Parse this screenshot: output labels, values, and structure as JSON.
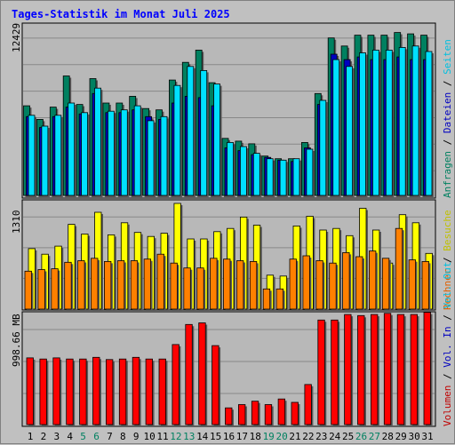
{
  "chart_data": {
    "type": "bar",
    "title": "Tages-Statistik im Monat Juli 2025",
    "categories": [
      "1",
      "2",
      "3",
      "4",
      "5",
      "6",
      "7",
      "8",
      "9",
      "10",
      "11",
      "12",
      "13",
      "14",
      "15",
      "16",
      "17",
      "18",
      "19",
      "20",
      "21",
      "22",
      "23",
      "24",
      "25",
      "26",
      "27",
      "28",
      "29",
      "30",
      "31"
    ],
    "weekend_categories": [
      "5",
      "6",
      "12",
      "13",
      "19",
      "20",
      "26",
      "27"
    ],
    "colors": {
      "weekday_label": "#000000",
      "weekend_label": "#008060",
      "anfragen": "#008060",
      "dateien": "#0000c0",
      "seiten": "#00e0ff",
      "besuche": "#ffff00",
      "rechner": "#ff8000",
      "volumen": "#ff0000"
    },
    "panels": [
      {
        "name": "hits",
        "ymax_label": "12429",
        "ymax": 12429,
        "series": [
          {
            "name": "Anfragen",
            "values": [
              6600,
              5600,
              6500,
              8800,
              6700,
              8600,
              6800,
              6800,
              7300,
              6400,
              6300,
              8500,
              9800,
              10700,
              8300,
              4200,
              4000,
              3800,
              2900,
              2700,
              2700,
              3900,
              7500,
              11600,
              11000,
              11800,
              11800,
              11800,
              12000,
              11900,
              11800
            ]
          },
          {
            "name": "Dateien",
            "values": [
              5800,
              5000,
              5800,
              6500,
              6000,
              7500,
              6100,
              6100,
              6300,
              5800,
              5600,
              6800,
              7300,
              7200,
              6600,
              3500,
              3300,
              3000,
              2800,
              2600,
              2500,
              3500,
              6700,
              10400,
              10000,
              10200,
              10000,
              10000,
              10200,
              10000,
              10000
            ]
          },
          {
            "name": "Seiten",
            "values": [
              5900,
              5100,
              5900,
              6800,
              6100,
              7900,
              6200,
              6300,
              6600,
              5500,
              5800,
              8100,
              9500,
              9200,
              8200,
              3900,
              3600,
              3100,
              2700,
              2600,
              2700,
              3400,
              7000,
              10000,
              9500,
              10500,
              10700,
              10700,
              10900,
              11000,
              10600
            ]
          }
        ]
      },
      {
        "name": "visits",
        "ymax_label": "1310",
        "ymax": 1310,
        "series": [
          {
            "name": "Besuche",
            "values": [
              750,
              680,
              780,
              1050,
              930,
              1200,
              920,
              1070,
              950,
              900,
              940,
              1310,
              870,
              870,
              960,
              1000,
              1140,
              1040,
              420,
              410,
              1030,
              1150,
              980,
              1000,
              910,
              1250,
              980,
              570,
              1170,
              1070,
              690
            ]
          },
          {
            "name": "Rechner",
            "values": [
              470,
              490,
              500,
              580,
              600,
              630,
              590,
              600,
              600,
              620,
              680,
              570,
              510,
              510,
              630,
              620,
              600,
              590,
              250,
              250,
              620,
              660,
              600,
              570,
              700,
              650,
              720,
              630,
              1000,
              610,
              590
            ]
          }
        ]
      },
      {
        "name": "volume",
        "ymax_label": "998.66 MB",
        "ymax": 998.66,
        "legend": [
          "Volumen",
          "Vol. In",
          "Vol. Out"
        ],
        "series": [
          {
            "name": "Volumen",
            "values": [
              600,
              590,
              600,
              590,
              590,
              605,
              585,
              590,
              605,
              590,
              590,
              720,
              900,
              915,
              710,
              150,
              180,
              210,
              180,
              230,
              200,
              360,
              940,
              940,
              990,
              980,
              990,
              1000,
              990,
              990,
              1010
            ]
          }
        ]
      }
    ]
  }
}
